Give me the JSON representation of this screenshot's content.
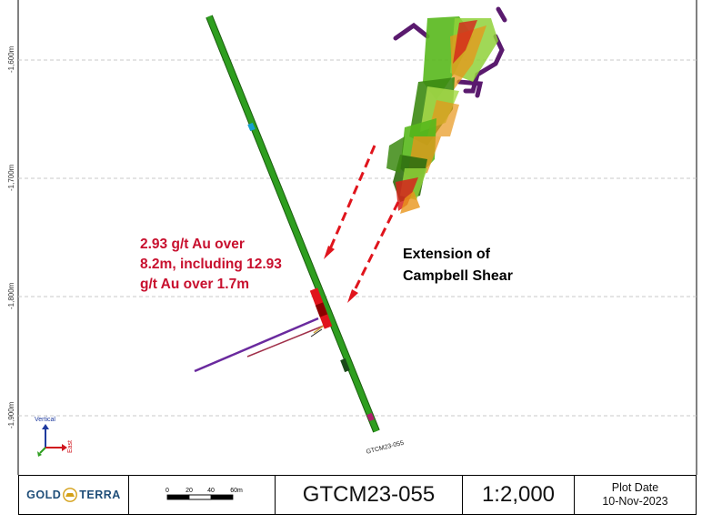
{
  "plot": {
    "elevation_labels": [
      "-1,600m",
      "-1,700m",
      "-1,800m",
      "-1,900m"
    ],
    "hole_id": "GTCM23-055",
    "annotation_result": [
      "2.93 g/t Au over",
      "8.2m, including 12.93",
      "g/t Au over 1.7m"
    ],
    "annotation_feature": [
      "Extension of",
      "Campbell Shear"
    ],
    "orientation": {
      "vertical": "Vertical",
      "east": "East"
    },
    "colors": {
      "drillhole": "#2e9e1f",
      "intercept": "#e0141c",
      "arrow": "#e0141c",
      "annotation_red": "#c8102e",
      "shear_green": "#58b81c",
      "shear_orange": "#e8951a",
      "structure_purple": "#5a1a6e",
      "gridline": "#c8c8c8"
    }
  },
  "title_block": {
    "logo": {
      "left": "GOLD",
      "right": "TERRA"
    },
    "scale_bar": {
      "ticks": [
        "0",
        "20",
        "40",
        "60m"
      ]
    },
    "hole_name": "GTCM23-055",
    "scale_ratio": "1:2,000",
    "plot_date_label": "Plot Date",
    "plot_date": "10-Nov-2023"
  }
}
